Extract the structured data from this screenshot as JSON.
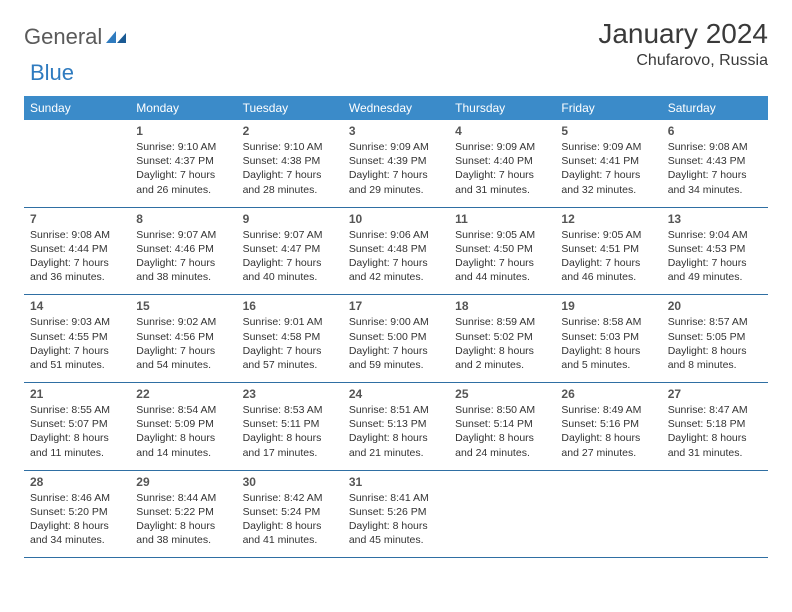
{
  "logo": {
    "text1": "General",
    "text2": "Blue"
  },
  "title": "January 2024",
  "location": "Chufarovo, Russia",
  "colors": {
    "header_bg": "#3b8bc9",
    "header_text": "#ffffff",
    "row_border": "#2f6fa3",
    "day_num": "#555555",
    "body_text": "#333333",
    "logo_gray": "#5a5a5a",
    "logo_blue": "#2f7bbf"
  },
  "dow": [
    "Sunday",
    "Monday",
    "Tuesday",
    "Wednesday",
    "Thursday",
    "Friday",
    "Saturday"
  ],
  "weeks": [
    [
      {
        "n": "",
        "l1": "",
        "l2": "",
        "l3": "",
        "l4": ""
      },
      {
        "n": "1",
        "l1": "Sunrise: 9:10 AM",
        "l2": "Sunset: 4:37 PM",
        "l3": "Daylight: 7 hours",
        "l4": "and 26 minutes."
      },
      {
        "n": "2",
        "l1": "Sunrise: 9:10 AM",
        "l2": "Sunset: 4:38 PM",
        "l3": "Daylight: 7 hours",
        "l4": "and 28 minutes."
      },
      {
        "n": "3",
        "l1": "Sunrise: 9:09 AM",
        "l2": "Sunset: 4:39 PM",
        "l3": "Daylight: 7 hours",
        "l4": "and 29 minutes."
      },
      {
        "n": "4",
        "l1": "Sunrise: 9:09 AM",
        "l2": "Sunset: 4:40 PM",
        "l3": "Daylight: 7 hours",
        "l4": "and 31 minutes."
      },
      {
        "n": "5",
        "l1": "Sunrise: 9:09 AM",
        "l2": "Sunset: 4:41 PM",
        "l3": "Daylight: 7 hours",
        "l4": "and 32 minutes."
      },
      {
        "n": "6",
        "l1": "Sunrise: 9:08 AM",
        "l2": "Sunset: 4:43 PM",
        "l3": "Daylight: 7 hours",
        "l4": "and 34 minutes."
      }
    ],
    [
      {
        "n": "7",
        "l1": "Sunrise: 9:08 AM",
        "l2": "Sunset: 4:44 PM",
        "l3": "Daylight: 7 hours",
        "l4": "and 36 minutes."
      },
      {
        "n": "8",
        "l1": "Sunrise: 9:07 AM",
        "l2": "Sunset: 4:46 PM",
        "l3": "Daylight: 7 hours",
        "l4": "and 38 minutes."
      },
      {
        "n": "9",
        "l1": "Sunrise: 9:07 AM",
        "l2": "Sunset: 4:47 PM",
        "l3": "Daylight: 7 hours",
        "l4": "and 40 minutes."
      },
      {
        "n": "10",
        "l1": "Sunrise: 9:06 AM",
        "l2": "Sunset: 4:48 PM",
        "l3": "Daylight: 7 hours",
        "l4": "and 42 minutes."
      },
      {
        "n": "11",
        "l1": "Sunrise: 9:05 AM",
        "l2": "Sunset: 4:50 PM",
        "l3": "Daylight: 7 hours",
        "l4": "and 44 minutes."
      },
      {
        "n": "12",
        "l1": "Sunrise: 9:05 AM",
        "l2": "Sunset: 4:51 PM",
        "l3": "Daylight: 7 hours",
        "l4": "and 46 minutes."
      },
      {
        "n": "13",
        "l1": "Sunrise: 9:04 AM",
        "l2": "Sunset: 4:53 PM",
        "l3": "Daylight: 7 hours",
        "l4": "and 49 minutes."
      }
    ],
    [
      {
        "n": "14",
        "l1": "Sunrise: 9:03 AM",
        "l2": "Sunset: 4:55 PM",
        "l3": "Daylight: 7 hours",
        "l4": "and 51 minutes."
      },
      {
        "n": "15",
        "l1": "Sunrise: 9:02 AM",
        "l2": "Sunset: 4:56 PM",
        "l3": "Daylight: 7 hours",
        "l4": "and 54 minutes."
      },
      {
        "n": "16",
        "l1": "Sunrise: 9:01 AM",
        "l2": "Sunset: 4:58 PM",
        "l3": "Daylight: 7 hours",
        "l4": "and 57 minutes."
      },
      {
        "n": "17",
        "l1": "Sunrise: 9:00 AM",
        "l2": "Sunset: 5:00 PM",
        "l3": "Daylight: 7 hours",
        "l4": "and 59 minutes."
      },
      {
        "n": "18",
        "l1": "Sunrise: 8:59 AM",
        "l2": "Sunset: 5:02 PM",
        "l3": "Daylight: 8 hours",
        "l4": "and 2 minutes."
      },
      {
        "n": "19",
        "l1": "Sunrise: 8:58 AM",
        "l2": "Sunset: 5:03 PM",
        "l3": "Daylight: 8 hours",
        "l4": "and 5 minutes."
      },
      {
        "n": "20",
        "l1": "Sunrise: 8:57 AM",
        "l2": "Sunset: 5:05 PM",
        "l3": "Daylight: 8 hours",
        "l4": "and 8 minutes."
      }
    ],
    [
      {
        "n": "21",
        "l1": "Sunrise: 8:55 AM",
        "l2": "Sunset: 5:07 PM",
        "l3": "Daylight: 8 hours",
        "l4": "and 11 minutes."
      },
      {
        "n": "22",
        "l1": "Sunrise: 8:54 AM",
        "l2": "Sunset: 5:09 PM",
        "l3": "Daylight: 8 hours",
        "l4": "and 14 minutes."
      },
      {
        "n": "23",
        "l1": "Sunrise: 8:53 AM",
        "l2": "Sunset: 5:11 PM",
        "l3": "Daylight: 8 hours",
        "l4": "and 17 minutes."
      },
      {
        "n": "24",
        "l1": "Sunrise: 8:51 AM",
        "l2": "Sunset: 5:13 PM",
        "l3": "Daylight: 8 hours",
        "l4": "and 21 minutes."
      },
      {
        "n": "25",
        "l1": "Sunrise: 8:50 AM",
        "l2": "Sunset: 5:14 PM",
        "l3": "Daylight: 8 hours",
        "l4": "and 24 minutes."
      },
      {
        "n": "26",
        "l1": "Sunrise: 8:49 AM",
        "l2": "Sunset: 5:16 PM",
        "l3": "Daylight: 8 hours",
        "l4": "and 27 minutes."
      },
      {
        "n": "27",
        "l1": "Sunrise: 8:47 AM",
        "l2": "Sunset: 5:18 PM",
        "l3": "Daylight: 8 hours",
        "l4": "and 31 minutes."
      }
    ],
    [
      {
        "n": "28",
        "l1": "Sunrise: 8:46 AM",
        "l2": "Sunset: 5:20 PM",
        "l3": "Daylight: 8 hours",
        "l4": "and 34 minutes."
      },
      {
        "n": "29",
        "l1": "Sunrise: 8:44 AM",
        "l2": "Sunset: 5:22 PM",
        "l3": "Daylight: 8 hours",
        "l4": "and 38 minutes."
      },
      {
        "n": "30",
        "l1": "Sunrise: 8:42 AM",
        "l2": "Sunset: 5:24 PM",
        "l3": "Daylight: 8 hours",
        "l4": "and 41 minutes."
      },
      {
        "n": "31",
        "l1": "Sunrise: 8:41 AM",
        "l2": "Sunset: 5:26 PM",
        "l3": "Daylight: 8 hours",
        "l4": "and 45 minutes."
      },
      {
        "n": "",
        "l1": "",
        "l2": "",
        "l3": "",
        "l4": ""
      },
      {
        "n": "",
        "l1": "",
        "l2": "",
        "l3": "",
        "l4": ""
      },
      {
        "n": "",
        "l1": "",
        "l2": "",
        "l3": "",
        "l4": ""
      }
    ]
  ]
}
